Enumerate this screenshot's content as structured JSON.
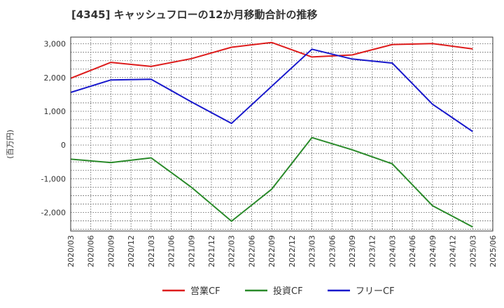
{
  "chart_data": {
    "type": "line",
    "title": "[4345]  キャッシュフローの12か月移動合計の推移",
    "ylabel": "(百万円)",
    "xlabel": "",
    "ylim": [
      -2550,
      3200
    ],
    "yticks": [
      3000,
      2000,
      1000,
      0,
      -1000,
      -2000
    ],
    "ytick_labels": [
      "3,000",
      "2,000",
      "1,000",
      "0",
      "-1,000",
      "-2,000"
    ],
    "categories": [
      "2020/03",
      "2020/06",
      "2020/09",
      "2020/12",
      "2021/03",
      "2021/06",
      "2021/09",
      "2021/12",
      "2022/03",
      "2022/06",
      "2022/09",
      "2022/12",
      "2023/03",
      "2023/06",
      "2023/09",
      "2023/12",
      "2024/03",
      "2024/06",
      "2024/09",
      "2024/12",
      "2025/03",
      "2025/06"
    ],
    "grid": true,
    "legend_position": "bottom",
    "series": [
      {
        "name": "営業CF",
        "color": "#dd1c1c",
        "points": [
          [
            "2020/03",
            1980
          ],
          [
            "2020/09",
            2450
          ],
          [
            "2021/03",
            2330
          ],
          [
            "2021/09",
            2560
          ],
          [
            "2022/03",
            2900
          ],
          [
            "2022/09",
            3040
          ],
          [
            "2023/03",
            2610
          ],
          [
            "2023/09",
            2670
          ],
          [
            "2024/03",
            2980
          ],
          [
            "2024/09",
            3010
          ],
          [
            "2025/03",
            2850
          ]
        ]
      },
      {
        "name": "投資CF",
        "color": "#2a8a2a",
        "points": [
          [
            "2020/03",
            -420
          ],
          [
            "2020/09",
            -520
          ],
          [
            "2021/03",
            -380
          ],
          [
            "2021/09",
            -1250
          ],
          [
            "2022/03",
            -2260
          ],
          [
            "2022/09",
            -1310
          ],
          [
            "2023/03",
            220
          ],
          [
            "2023/09",
            -140
          ],
          [
            "2024/03",
            -560
          ],
          [
            "2024/09",
            -1800
          ],
          [
            "2025/03",
            -2430
          ]
        ]
      },
      {
        "name": "フリーCF",
        "color": "#1818cc",
        "points": [
          [
            "2020/03",
            1560
          ],
          [
            "2020/09",
            1930
          ],
          [
            "2021/03",
            1950
          ],
          [
            "2021/09",
            1280
          ],
          [
            "2022/03",
            640
          ],
          [
            "2022/09",
            1740
          ],
          [
            "2023/03",
            2840
          ],
          [
            "2023/09",
            2550
          ],
          [
            "2024/03",
            2430
          ],
          [
            "2024/09",
            1210
          ],
          [
            "2025/03",
            400
          ]
        ]
      }
    ]
  }
}
